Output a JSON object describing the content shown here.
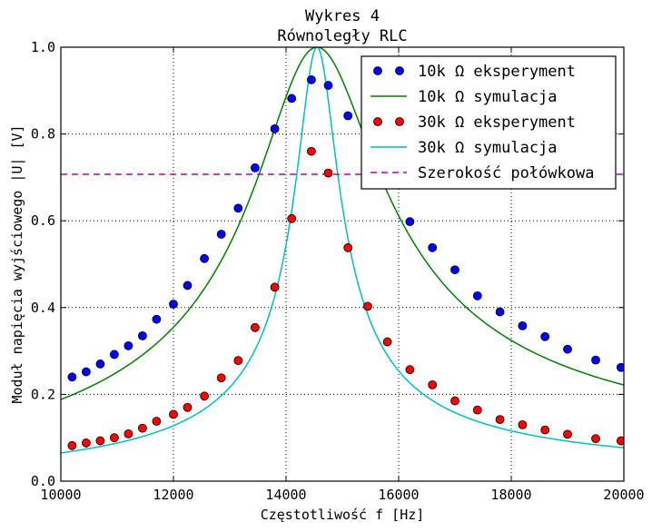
{
  "chart_data": {
    "type": "line",
    "title": "Wykres 4",
    "subtitle": "Równoległy RLC",
    "xlabel": "Częstotliwość f [Hz]",
    "ylabel": "Moduł napięcia wyjściowego |U| [V]",
    "xlim": [
      10000,
      20000
    ],
    "ylim": [
      0.0,
      1.0
    ],
    "x_ticks": [
      10000,
      12000,
      14000,
      16000,
      18000,
      20000
    ],
    "y_ticks": [
      0.0,
      0.2,
      0.4,
      0.6,
      0.8,
      1.0
    ],
    "x_tick_labels": [
      "10000",
      "12000",
      "14000",
      "16000",
      "18000",
      "20000"
    ],
    "y_tick_labels": [
      "0.0",
      "0.2",
      "0.4",
      "0.6",
      "0.8",
      "1.0"
    ],
    "grid": true,
    "legend_position": "top-right",
    "series": [
      {
        "name": "10k Ω eksperyment",
        "kind": "scatter",
        "color": "#0000ff",
        "x": [
          10200,
          10450,
          10700,
          10950,
          11200,
          11450,
          11700,
          12000,
          12250,
          12550,
          12850,
          13150,
          13450,
          13800,
          14100,
          14450,
          14750,
          15100,
          15450,
          15800,
          16200,
          16600,
          17000,
          17400,
          17800,
          18200,
          18600,
          19000,
          19500,
          19950
        ],
        "y": [
          0.24,
          0.252,
          0.27,
          0.292,
          0.312,
          0.335,
          0.373,
          0.408,
          0.451,
          0.513,
          0.569,
          0.629,
          0.722,
          0.812,
          0.882,
          0.925,
          0.912,
          0.842,
          0.772,
          0.702,
          0.598,
          0.538,
          0.487,
          0.427,
          0.39,
          0.358,
          0.333,
          0.304,
          0.279,
          0.262
        ]
      },
      {
        "name": "10k Ω symulacja",
        "kind": "line",
        "color": "#008000",
        "f0": 14550,
        "q": 6.8
      },
      {
        "name": "30k Ω eksperyment",
        "kind": "scatter",
        "color": "#ff0000",
        "x": [
          10200,
          10450,
          10700,
          10950,
          11200,
          11450,
          11700,
          12000,
          12250,
          12550,
          12850,
          13150,
          13450,
          13800,
          14100,
          14450,
          14750,
          15100,
          15450,
          15800,
          16200,
          16600,
          17000,
          17400,
          17800,
          18200,
          18600,
          19000,
          19500,
          19950
        ],
        "y": [
          0.082,
          0.088,
          0.093,
          0.1,
          0.109,
          0.122,
          0.138,
          0.154,
          0.17,
          0.196,
          0.238,
          0.278,
          0.354,
          0.447,
          0.605,
          0.76,
          0.71,
          0.538,
          0.403,
          0.321,
          0.257,
          0.222,
          0.185,
          0.164,
          0.142,
          0.13,
          0.118,
          0.108,
          0.098,
          0.093
        ]
      },
      {
        "name": "30k Ω symulacja",
        "kind": "line",
        "color": "#00bfbf",
        "f0": 14550,
        "q": 20
      },
      {
        "name": "Szerokość połówkowa",
        "kind": "hline",
        "color": "#bf00bf",
        "y": 0.707
      }
    ]
  }
}
